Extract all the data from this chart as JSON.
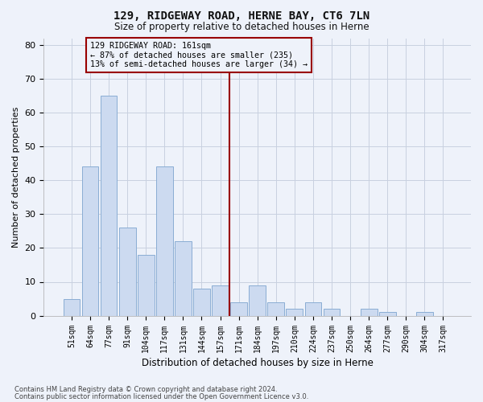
{
  "title1": "129, RIDGEWAY ROAD, HERNE BAY, CT6 7LN",
  "title2": "Size of property relative to detached houses in Herne",
  "xlabel": "Distribution of detached houses by size in Herne",
  "ylabel": "Number of detached properties",
  "categories": [
    "51sqm",
    "64sqm",
    "77sqm",
    "91sqm",
    "104sqm",
    "117sqm",
    "131sqm",
    "144sqm",
    "157sqm",
    "171sqm",
    "184sqm",
    "197sqm",
    "210sqm",
    "224sqm",
    "237sqm",
    "250sqm",
    "264sqm",
    "277sqm",
    "290sqm",
    "304sqm",
    "317sqm"
  ],
  "values": [
    5,
    44,
    65,
    26,
    18,
    44,
    22,
    8,
    9,
    4,
    9,
    4,
    2,
    4,
    2,
    0,
    2,
    1,
    0,
    1,
    0
  ],
  "bar_color": "#ccdaf0",
  "bar_edge_color": "#8aadd4",
  "grid_color": "#c8d0e0",
  "vline_color": "#990000",
  "vline_index": 8.5,
  "annotation_text": "129 RIDGEWAY ROAD: 161sqm\n← 87% of detached houses are smaller (235)\n13% of semi-detached houses are larger (34) →",
  "annotation_box_color": "#990000",
  "ylim": [
    0,
    82
  ],
  "yticks": [
    0,
    10,
    20,
    30,
    40,
    50,
    60,
    70,
    80
  ],
  "footer1": "Contains HM Land Registry data © Crown copyright and database right 2024.",
  "footer2": "Contains public sector information licensed under the Open Government Licence v3.0.",
  "background_color": "#eef2fa"
}
